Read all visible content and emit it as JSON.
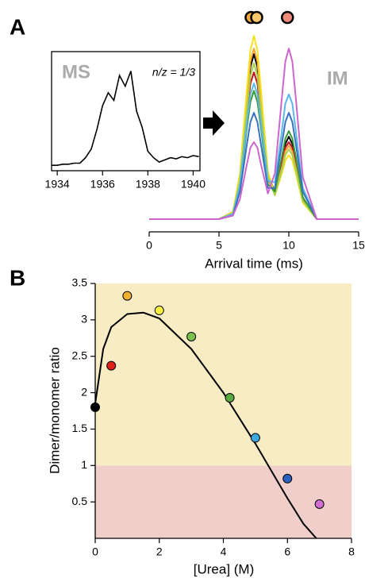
{
  "chart_data": [
    {
      "type": "line",
      "panel_label": "A",
      "title": "MS",
      "annotation": "n/z = 1/3",
      "color": "#000000",
      "x": [
        1933.75,
        1934,
        1934.25,
        1934.5,
        1934.75,
        1935,
        1935.25,
        1935.5,
        1935.75,
        1936,
        1936.25,
        1936.5,
        1936.75,
        1937,
        1937.25,
        1937.5,
        1937.75,
        1938,
        1938.25,
        1938.5,
        1938.75,
        1939,
        1939.25,
        1939.5,
        1939.75,
        1940,
        1940.25
      ],
      "values": [
        5,
        5,
        6,
        6,
        7,
        7,
        12,
        20,
        38,
        60,
        72,
        65,
        88,
        78,
        92,
        55,
        40,
        18,
        12,
        8,
        10,
        12,
        11,
        13,
        12,
        14,
        13
      ],
      "xlim": [
        1933.75,
        1940.3
      ],
      "xticks": [
        1934,
        1936,
        1938,
        1940
      ],
      "ylim": [
        0,
        110
      ]
    },
    {
      "type": "line",
      "title": "IM",
      "x_label": "Arrival time (ms)",
      "x": [
        0,
        5,
        6,
        6.5,
        7,
        7.25,
        7.5,
        7.75,
        8,
        8.5,
        9,
        9.5,
        9.75,
        10,
        10.25,
        10.5,
        11,
        12,
        15
      ],
      "series": [
        {
          "color": "#000000",
          "values": [
            0,
            0,
            4,
            23,
            64,
            83,
            90,
            83,
            64,
            24,
            15,
            32,
            41,
            45,
            41,
            32,
            11,
            0,
            0
          ]
        },
        {
          "color": "#c0141c",
          "values": [
            0,
            0,
            3,
            20,
            57,
            74,
            80,
            74,
            57,
            22,
            14,
            30,
            39,
            42,
            39,
            30,
            11,
            0,
            0
          ]
        },
        {
          "color": "#f4a23a",
          "values": [
            0,
            0,
            4,
            23,
            66,
            86,
            93,
            86,
            66,
            25,
            14,
            28,
            37,
            40,
            37,
            28,
            10,
            0,
            0
          ]
        },
        {
          "color": "#f5e11c",
          "values": [
            0,
            0,
            4,
            25,
            71,
            92,
            100,
            92,
            71,
            26,
            13,
            25,
            32,
            35,
            32,
            25,
            9,
            0,
            0
          ]
        },
        {
          "color": "#a8d050",
          "values": [
            0,
            0,
            3,
            21,
            60,
            78,
            85,
            78,
            60,
            23,
            13,
            27,
            35,
            38,
            35,
            27,
            10,
            0,
            0
          ]
        },
        {
          "color": "#3a9a3a",
          "values": [
            0,
            0,
            3,
            18,
            50,
            64,
            70,
            64,
            50,
            19,
            15,
            34,
            44,
            48,
            44,
            34,
            12,
            0,
            0
          ]
        },
        {
          "color": "#5bb8e8",
          "values": [
            0,
            0,
            3,
            19,
            53,
            68,
            74,
            68,
            53,
            21,
            20,
            48,
            63,
            68,
            63,
            48,
            17,
            0,
            0
          ]
        },
        {
          "color": "#3a72c0",
          "values": [
            0,
            0,
            2,
            15,
            41,
            53,
            58,
            53,
            41,
            17,
            17,
            41,
            53,
            58,
            53,
            41,
            15,
            0,
            0
          ]
        },
        {
          "color": "#cc66cc",
          "values": [
            0,
            0,
            2,
            11,
            30,
            39,
            42,
            39,
            30,
            14,
            25,
            66,
            86,
            93,
            86,
            66,
            23,
            0,
            0
          ]
        }
      ],
      "markers": [
        {
          "x": 7.3,
          "color": "#f4a640"
        },
        {
          "x": 7.7,
          "color": "#f9c86a"
        },
        {
          "x": 9.9,
          "color": "#f08a7a"
        }
      ],
      "xlim": [
        0,
        15
      ],
      "xticks": [
        0,
        5,
        10,
        15
      ],
      "ylim": [
        0,
        100
      ]
    },
    {
      "type": "scatter",
      "panel_label": "B",
      "x_label": "[Urea] (M)",
      "y_label": "Dimer/monomer ratio",
      "x": [
        0,
        0.5,
        1,
        2,
        3,
        4.2,
        5,
        6,
        7
      ],
      "values": [
        1.8,
        2.37,
        3.33,
        3.13,
        2.77,
        1.93,
        1.38,
        0.82,
        0.47
      ],
      "colors": [
        "#000000",
        "#e0201a",
        "#f0b030",
        "#f8f040",
        "#7cc050",
        "#5aa840",
        "#40a8e0",
        "#2a60c0",
        "#d070d0"
      ],
      "fit": {
        "x": [
          0,
          0.25,
          0.5,
          1,
          1.5,
          2,
          3,
          4,
          5,
          6,
          6.5,
          6.9
        ],
        "values": [
          1.85,
          2.6,
          2.9,
          3.08,
          3.1,
          3.02,
          2.6,
          2.0,
          1.3,
          0.55,
          0.2,
          0
        ]
      },
      "bands": {
        "threshold": 1,
        "above": "#f7ecc3",
        "below": "#f0cfca"
      },
      "xlim": [
        0,
        8
      ],
      "ylim": [
        0,
        3.5
      ],
      "xticks": [
        0,
        2,
        4,
        6,
        8
      ],
      "yticks": [
        0.5,
        1,
        1.5,
        2,
        2.5,
        3,
        3.5
      ]
    }
  ]
}
